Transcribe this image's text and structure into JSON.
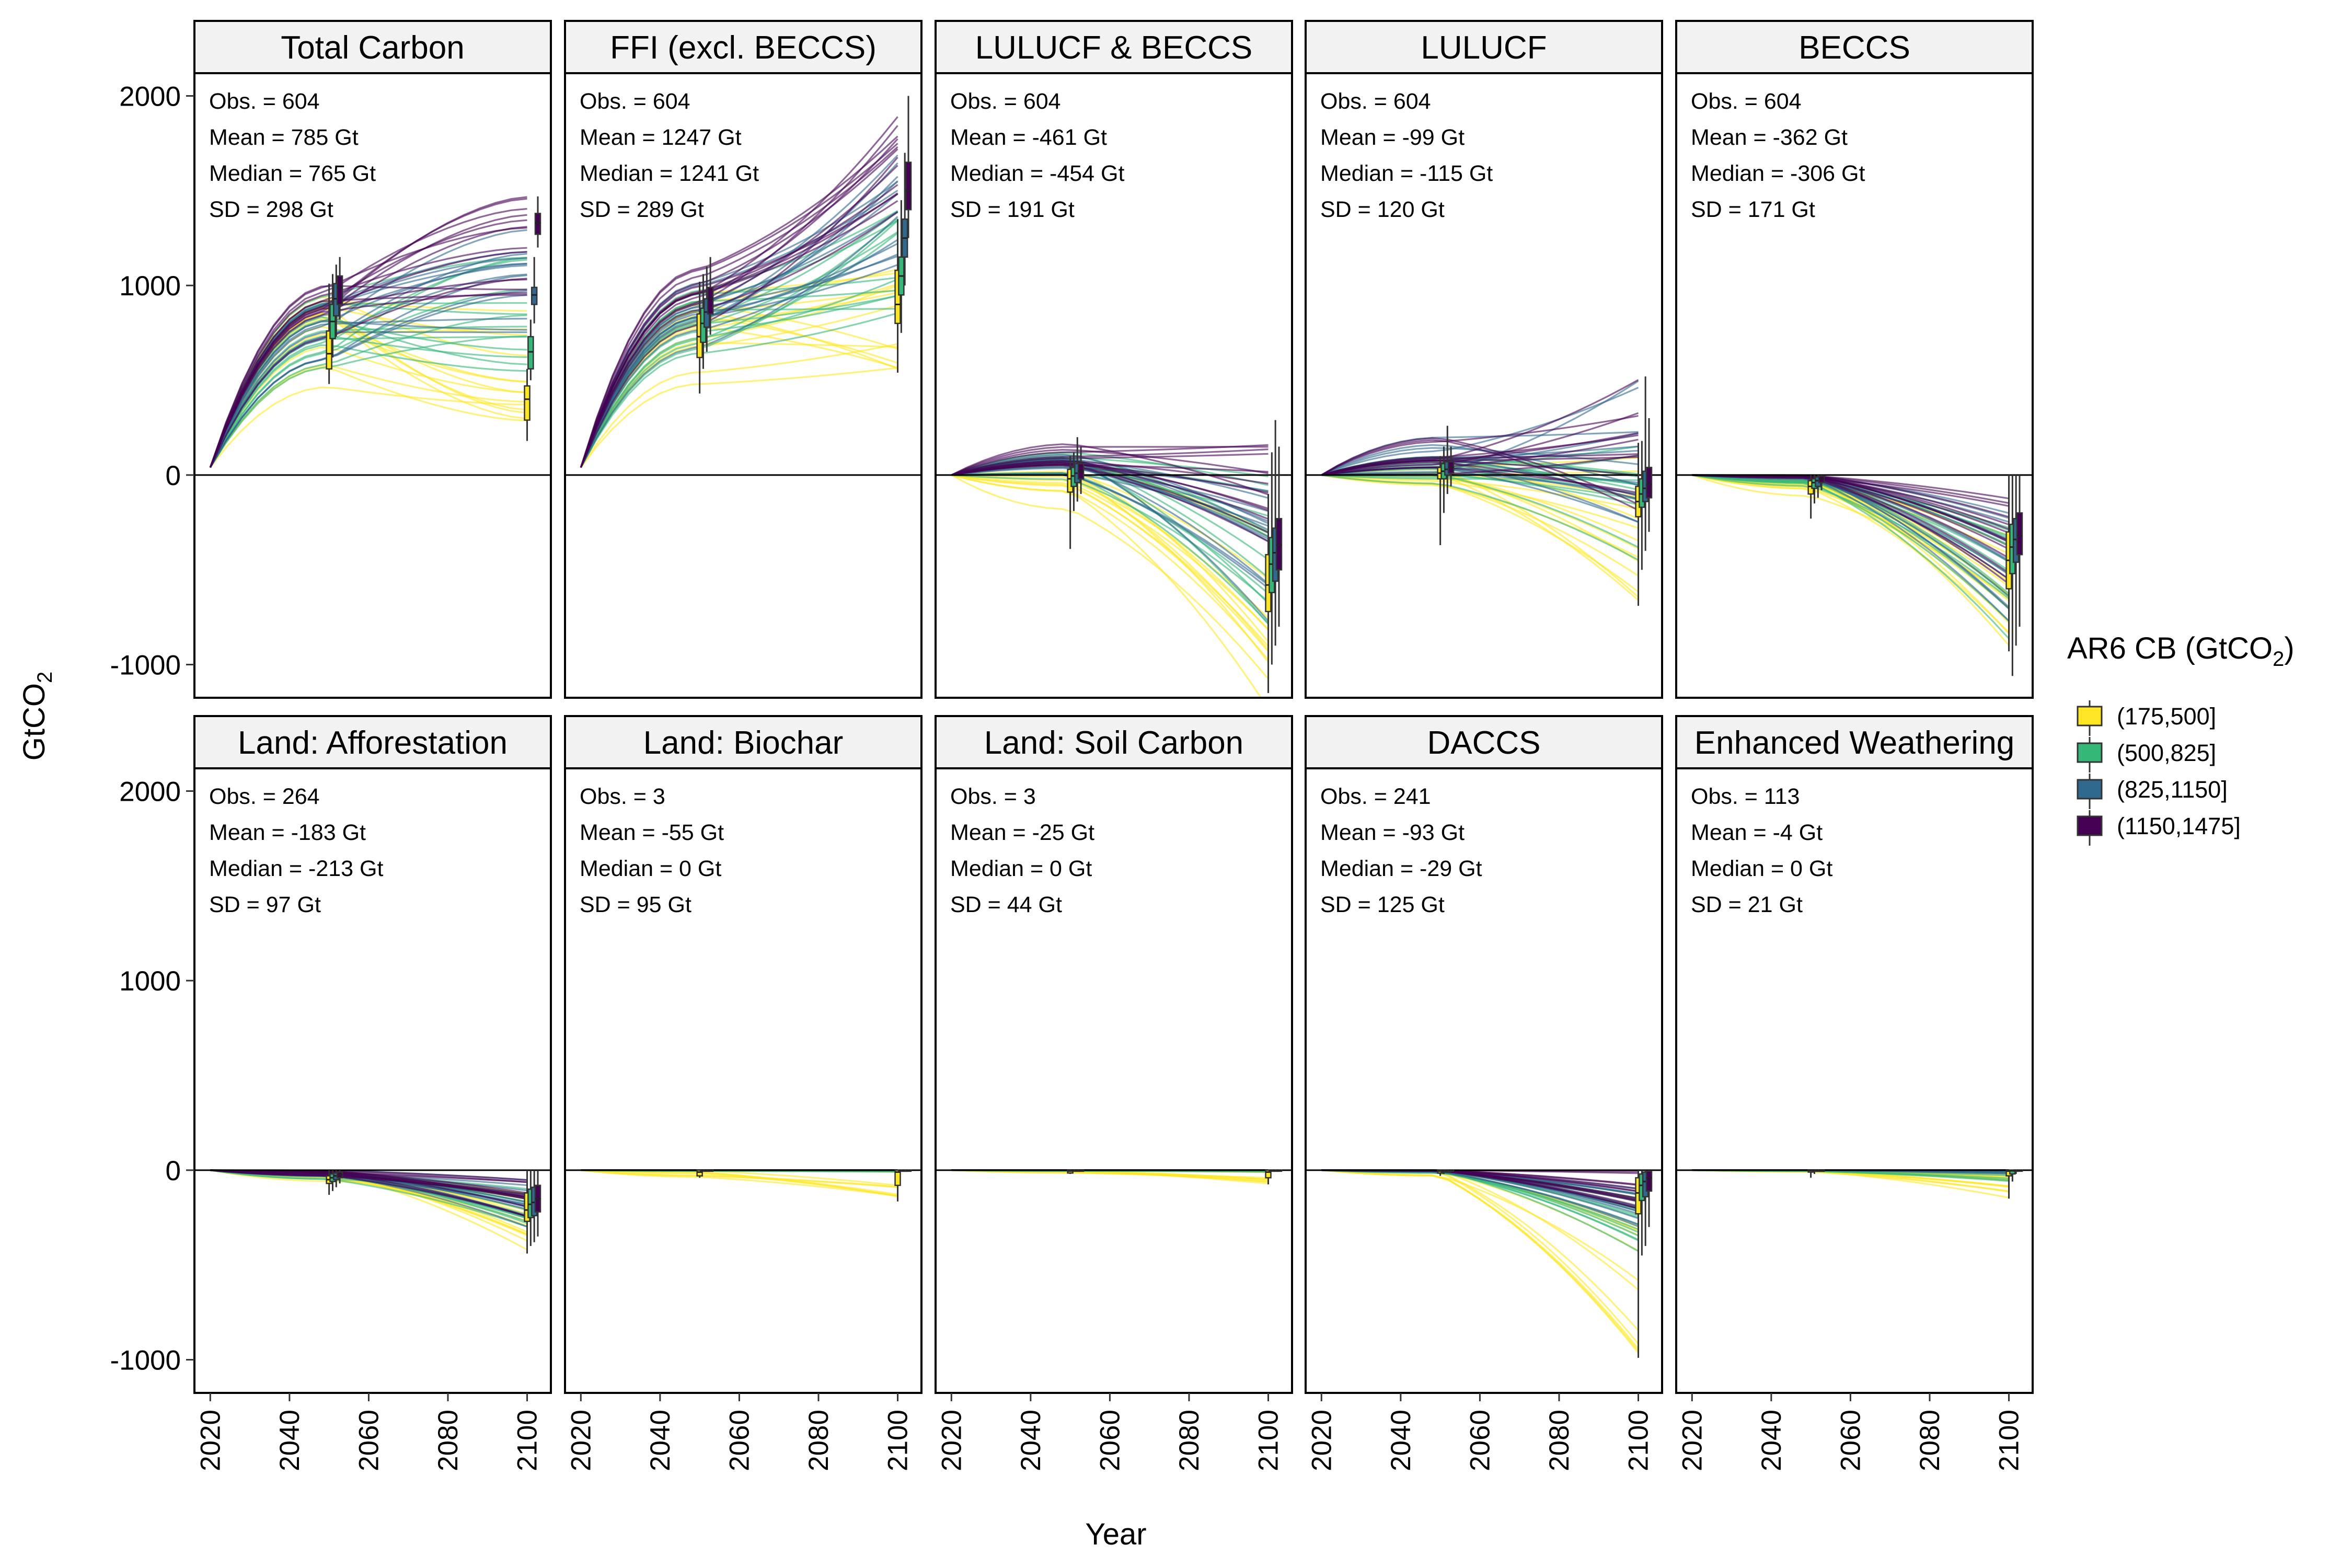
{
  "chart_data": {
    "type": "line",
    "xlabel": "Year",
    "ylabel": "GtCO",
    "ylabel_subscript": "2",
    "x_ticks": [
      2020,
      2040,
      2060,
      2080,
      2100
    ],
    "y_ticks": [
      -1000,
      0,
      1000,
      2000
    ],
    "xlim": [
      2016,
      2106
    ],
    "ylim": [
      -1175,
      2120
    ],
    "grid": false,
    "legend": {
      "title": "AR6 CB (GtCO",
      "title_subscript": "2",
      "title_end": ")",
      "placement": "right",
      "entries": [
        {
          "label": "(175,500]",
          "color": "#FDE725"
        },
        {
          "label": "(500,825]",
          "color": "#35B779"
        },
        {
          "label": "(825,1150]",
          "color": "#31688E"
        },
        {
          "label": "(1150,1475]",
          "color": "#440154"
        }
      ]
    },
    "panels": [
      {
        "title": "Total Carbon",
        "stats": {
          "obs": "Obs. = 604",
          "mean": "Mean = 785 Gt",
          "median": "Median = 765 Gt",
          "sd": "SD = 298 Gt"
        },
        "trajectory_2050": [
          [
            430,
            1000
          ],
          [
            520,
            1000
          ],
          [
            600,
            950
          ],
          [
            700,
            1000
          ],
          [
            780,
            1050
          ]
        ],
        "trajectory_2100": [
          [
            230,
            560
          ],
          [
            400,
            900
          ],
          [
            700,
            1150
          ],
          [
            950,
            1300
          ],
          [
            1300,
            1470
          ]
        ],
        "box_2050": [
          [
            480,
            560,
            640,
            760,
            1010
          ],
          [
            620,
            720,
            810,
            900,
            1060
          ],
          [
            730,
            840,
            930,
            1010,
            1110
          ],
          [
            820,
            900,
            990,
            1050,
            1150
          ]
        ],
        "box_2100": [
          [
            180,
            290,
            400,
            470,
            560
          ],
          [
            500,
            560,
            650,
            730,
            820
          ],
          [
            800,
            900,
            950,
            990,
            1150
          ],
          [
            1200,
            1270,
            1330,
            1380,
            1470
          ]
        ]
      },
      {
        "title": "FFI (excl. BECCS)",
        "stats": {
          "obs": "Obs. = 604",
          "mean": "Mean = 1247 Gt",
          "median": "Median = 1241 Gt",
          "sd": "SD = 289 Gt"
        },
        "trajectory_2050": [
          [
            450,
            1000
          ],
          [
            560,
            1000
          ],
          [
            650,
            1000
          ],
          [
            750,
            1050
          ],
          [
            840,
            1100
          ]
        ],
        "trajectory_2100": [
          [
            560,
            700
          ],
          [
            800,
            1100
          ],
          [
            1100,
            1400
          ],
          [
            1350,
            1700
          ],
          [
            1650,
            2000
          ]
        ],
        "box_2050": [
          [
            430,
            620,
            730,
            850,
            1020
          ],
          [
            560,
            700,
            800,
            880,
            1060
          ],
          [
            650,
            780,
            860,
            930,
            1100
          ],
          [
            740,
            850,
            930,
            990,
            1150
          ]
        ],
        "box_2100": [
          [
            540,
            800,
            900,
            1080,
            1350
          ],
          [
            750,
            950,
            1050,
            1150,
            1450
          ],
          [
            1000,
            1150,
            1250,
            1350,
            1700
          ],
          [
            1250,
            1400,
            1500,
            1650,
            2000
          ]
        ]
      },
      {
        "title": "LULUCF & BECCS",
        "stats": {
          "obs": "Obs. = 604",
          "mean": "Mean = -461 Gt",
          "median": "Median = -454 Gt",
          "sd": "SD = 191 Gt"
        },
        "trajectory_2050": [
          [
            -200,
            0
          ],
          [
            -60,
            100
          ],
          [
            0,
            120
          ],
          [
            30,
            200
          ],
          [
            50,
            100
          ]
        ],
        "trajectory_2100": [
          [
            -1280,
            -700
          ],
          [
            -1000,
            -300
          ],
          [
            -800,
            0
          ],
          [
            -600,
            300
          ],
          [
            -400,
            150
          ]
        ],
        "box_2050": [
          [
            -390,
            -90,
            -20,
            30,
            100
          ],
          [
            -190,
            -60,
            -5,
            40,
            120
          ],
          [
            -140,
            -40,
            10,
            60,
            200
          ],
          [
            -100,
            -20,
            20,
            60,
            150
          ]
        ],
        "box_2100": [
          [
            -1150,
            -720,
            -580,
            -420,
            -100
          ],
          [
            -1000,
            -620,
            -470,
            -330,
            120
          ],
          [
            -900,
            -560,
            -410,
            -280,
            290
          ],
          [
            -800,
            -500,
            -370,
            -230,
            150
          ]
        ]
      },
      {
        "title": "LULUCF",
        "stats": {
          "obs": "Obs. = 604",
          "mean": "Mean = -99 Gt",
          "median": "Median = -115 Gt",
          "sd": "SD = 120 Gt"
        },
        "trajectory_2050": [
          [
            -80,
            30
          ],
          [
            -60,
            80
          ],
          [
            -20,
            100
          ],
          [
            0,
            200
          ],
          [
            20,
            100
          ]
        ],
        "trajectory_2100": [
          [
            -690,
            -300
          ],
          [
            -450,
            100
          ],
          [
            -300,
            200
          ],
          [
            -200,
            520
          ],
          [
            -150,
            300
          ]
        ],
        "box_2050": [
          [
            -370,
            -20,
            10,
            40,
            100
          ],
          [
            -200,
            -20,
            20,
            60,
            150
          ],
          [
            -100,
            0,
            30,
            70,
            260
          ],
          [
            -60,
            10,
            40,
            70,
            150
          ]
        ],
        "box_2100": [
          [
            -690,
            -220,
            -140,
            -60,
            170
          ],
          [
            -500,
            -170,
            -100,
            -20,
            180
          ],
          [
            -400,
            -140,
            -70,
            20,
            520
          ],
          [
            -300,
            -120,
            -50,
            40,
            300
          ]
        ]
      },
      {
        "title": "BECCS",
        "stats": {
          "obs": "Obs. = 604",
          "mean": "Mean = -362 Gt",
          "median": "Median = -306 Gt",
          "sd": "SD = 171 Gt"
        },
        "trajectory_2050": [
          [
            -120,
            0
          ],
          [
            -60,
            0
          ],
          [
            -40,
            0
          ],
          [
            -20,
            0
          ],
          [
            -10,
            0
          ]
        ],
        "trajectory_2100": [
          [
            -1060,
            -500
          ],
          [
            -900,
            -300
          ],
          [
            -800,
            -200
          ],
          [
            -700,
            -150
          ],
          [
            -600,
            0
          ]
        ],
        "box_2050": [
          [
            -230,
            -100,
            -60,
            -30,
            0
          ],
          [
            -150,
            -70,
            -40,
            -20,
            0
          ],
          [
            -120,
            -60,
            -30,
            -10,
            0
          ],
          [
            -80,
            -40,
            -20,
            -5,
            0
          ]
        ],
        "box_2100": [
          [
            -930,
            -600,
            -450,
            -300,
            0
          ],
          [
            -1060,
            -520,
            -380,
            -260,
            0
          ],
          [
            -900,
            -460,
            -340,
            -230,
            0
          ],
          [
            -800,
            -420,
            -320,
            -200,
            0
          ]
        ]
      },
      {
        "title": "Land: Afforestation",
        "stats": {
          "obs": "Obs. = 264",
          "mean": "Mean = -183 Gt",
          "median": "Median = -213 Gt",
          "sd": "SD = 97 Gt"
        },
        "trajectory_2050": [
          [
            -60,
            0
          ],
          [
            -50,
            0
          ],
          [
            -40,
            0
          ],
          [
            -30,
            0
          ],
          [
            -20,
            0
          ]
        ],
        "trajectory_2100": [
          [
            -440,
            -100
          ],
          [
            -350,
            -80
          ],
          [
            -300,
            -60
          ],
          [
            -250,
            -50
          ],
          [
            -200,
            -40
          ]
        ],
        "box_2050": [
          [
            -130,
            -70,
            -50,
            -30,
            0
          ],
          [
            -110,
            -60,
            -40,
            -20,
            0
          ],
          [
            -90,
            -50,
            -30,
            -15,
            0
          ],
          [
            -70,
            -40,
            -25,
            -10,
            0
          ]
        ],
        "box_2100": [
          [
            -440,
            -270,
            -210,
            -120,
            0
          ],
          [
            -400,
            -250,
            -180,
            -100,
            0
          ],
          [
            -380,
            -240,
            -170,
            -90,
            0
          ],
          [
            -350,
            -220,
            -150,
            -80,
            0
          ]
        ]
      },
      {
        "title": "Land: Biochar",
        "stats": {
          "obs": "Obs. = 3",
          "mean": "Mean = -55 Gt",
          "median": "Median = 0 Gt",
          "sd": "SD = 95 Gt"
        },
        "trajectory_2050": [
          [
            -40,
            0
          ],
          [
            -5,
            0
          ],
          [
            0,
            0
          ],
          [
            0,
            0
          ],
          [
            0,
            0
          ]
        ],
        "trajectory_2100": [
          [
            -170,
            -80
          ],
          [
            -10,
            0
          ],
          [
            0,
            0
          ],
          [
            0,
            0
          ],
          [
            0,
            0
          ]
        ],
        "box_2050": [
          [
            -40,
            -30,
            -10,
            0,
            0
          ],
          [
            0,
            0,
            0,
            0,
            0
          ],
          [
            0,
            0,
            0,
            0,
            0
          ],
          [
            0,
            0,
            0,
            0,
            0
          ]
        ],
        "box_2100": [
          [
            -165,
            -80,
            -10,
            0,
            0
          ],
          [
            0,
            0,
            0,
            0,
            0
          ],
          [
            0,
            0,
            0,
            0,
            0
          ],
          [
            0,
            0,
            0,
            0,
            0
          ]
        ]
      },
      {
        "title": "Land: Soil Carbon",
        "stats": {
          "obs": "Obs. = 3",
          "mean": "Mean = -25 Gt",
          "median": "Median = 0 Gt",
          "sd": "SD = 44 Gt"
        },
        "trajectory_2050": [
          [
            -20,
            0
          ],
          [
            -5,
            0
          ],
          [
            0,
            0
          ],
          [
            0,
            0
          ],
          [
            0,
            0
          ]
        ],
        "trajectory_2100": [
          [
            -80,
            -40
          ],
          [
            -10,
            0
          ],
          [
            0,
            0
          ],
          [
            0,
            0
          ],
          [
            0,
            0
          ]
        ],
        "box_2050": [
          [
            -20,
            -15,
            -5,
            0,
            0
          ],
          [
            0,
            0,
            0,
            0,
            0
          ],
          [
            0,
            0,
            0,
            0,
            0
          ],
          [
            0,
            0,
            0,
            0,
            0
          ]
        ],
        "box_2100": [
          [
            -75,
            -40,
            -10,
            0,
            0
          ],
          [
            0,
            0,
            0,
            0,
            0
          ],
          [
            0,
            0,
            0,
            0,
            0
          ],
          [
            0,
            0,
            0,
            0,
            0
          ]
        ]
      },
      {
        "title": "DACCS",
        "stats": {
          "obs": "Obs. = 241",
          "mean": "Mean = -93 Gt",
          "median": "Median = -29 Gt",
          "sd": "SD = 125 Gt"
        },
        "trajectory_2050": [
          [
            -30,
            0
          ],
          [
            -20,
            0
          ],
          [
            -10,
            0
          ],
          [
            -5,
            0
          ],
          [
            0,
            0
          ]
        ],
        "trajectory_2100": [
          [
            -990,
            -300
          ],
          [
            -450,
            -100
          ],
          [
            -350,
            -80
          ],
          [
            -250,
            -50
          ],
          [
            -200,
            0
          ]
        ],
        "box_2050": [
          [
            -30,
            -15,
            -5,
            0,
            0
          ],
          [
            -20,
            -10,
            -3,
            0,
            0
          ],
          [
            -15,
            -8,
            -2,
            0,
            0
          ],
          [
            -10,
            -5,
            0,
            0,
            0
          ]
        ],
        "box_2100": [
          [
            -990,
            -230,
            -120,
            -40,
            0
          ],
          [
            -450,
            -160,
            -80,
            -20,
            0
          ],
          [
            -400,
            -140,
            -60,
            -10,
            0
          ],
          [
            -300,
            -110,
            -40,
            -5,
            0
          ]
        ]
      },
      {
        "title": "Enhanced Weathering",
        "stats": {
          "obs": "Obs. = 113",
          "mean": "Mean = -4 Gt",
          "median": "Median = 0 Gt",
          "sd": "SD = 21 Gt"
        },
        "trajectory_2050": [
          [
            -10,
            0
          ],
          [
            -5,
            0
          ],
          [
            0,
            0
          ],
          [
            0,
            0
          ],
          [
            0,
            0
          ]
        ],
        "trajectory_2100": [
          [
            -150,
            -50
          ],
          [
            -60,
            0
          ],
          [
            -20,
            0
          ],
          [
            0,
            0
          ],
          [
            0,
            0
          ]
        ],
        "box_2050": [
          [
            -40,
            -10,
            -2,
            0,
            0
          ],
          [
            -20,
            -5,
            0,
            0,
            0
          ],
          [
            0,
            0,
            0,
            0,
            0
          ],
          [
            0,
            0,
            0,
            0,
            0
          ]
        ],
        "box_2100": [
          [
            -150,
            -30,
            -5,
            0,
            0
          ],
          [
            -60,
            -20,
            -3,
            0,
            0
          ],
          [
            -20,
            -5,
            0,
            0,
            0
          ],
          [
            0,
            0,
            0,
            0,
            0
          ]
        ]
      }
    ]
  }
}
